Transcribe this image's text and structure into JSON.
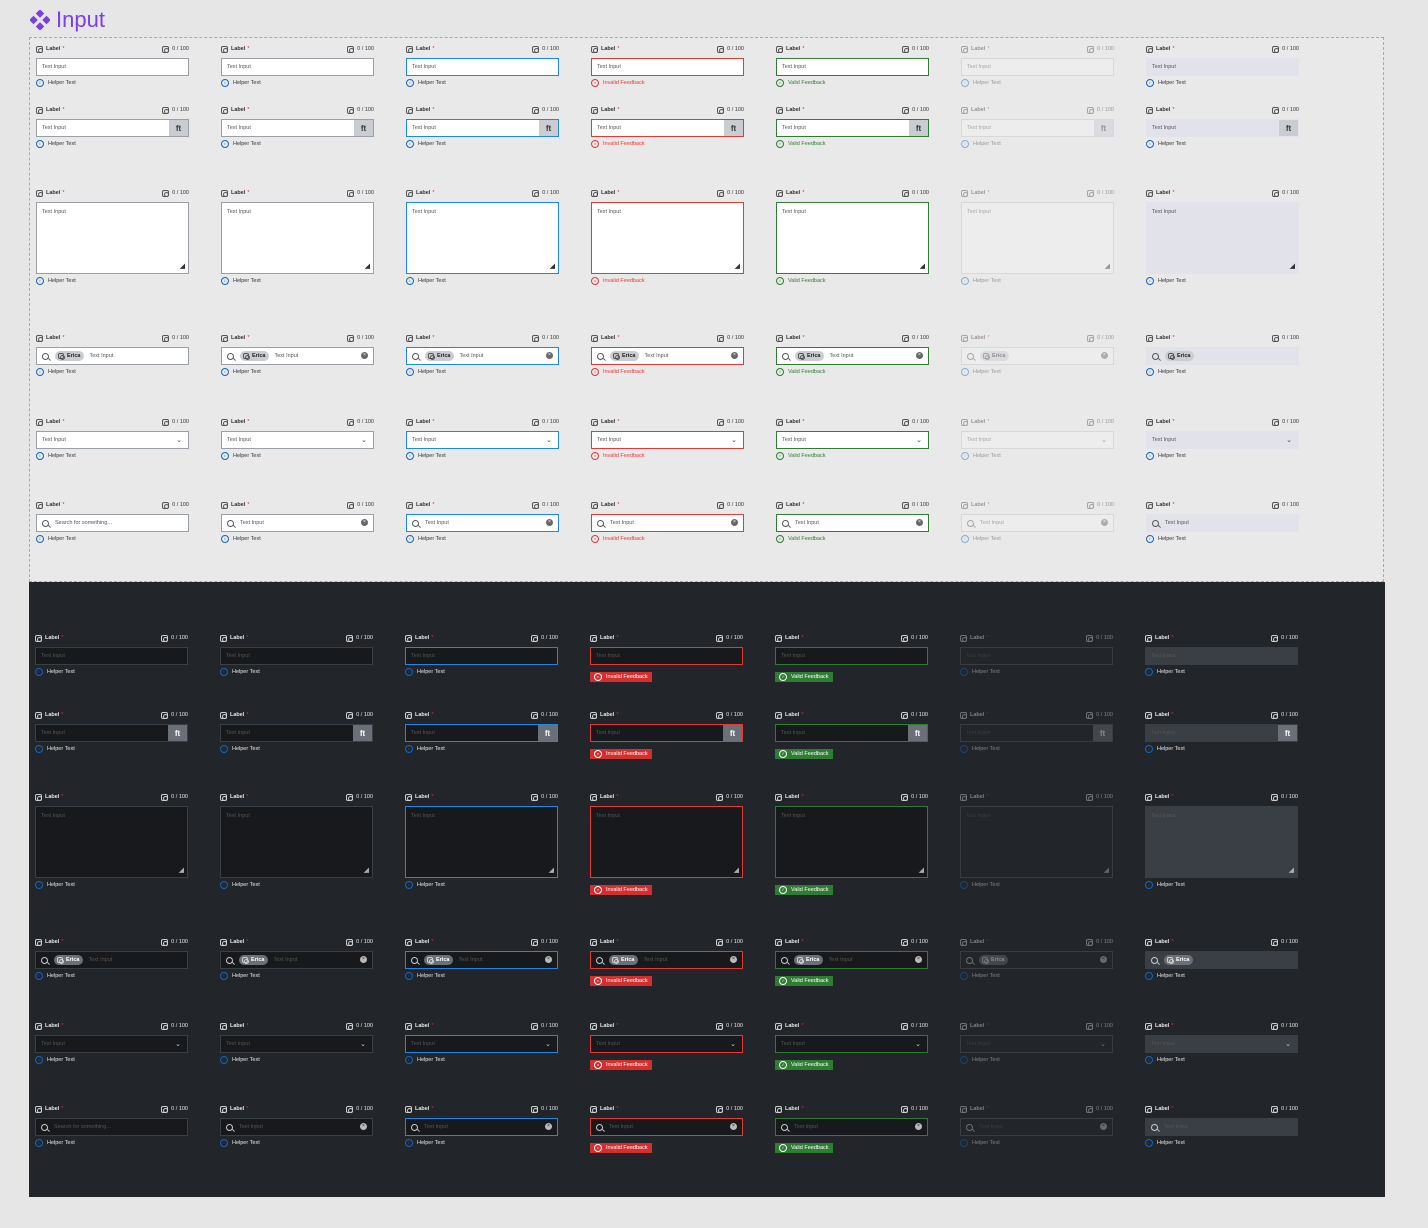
{
  "page": {
    "title": "Input",
    "accent": "#7b3fe4"
  },
  "colors": {
    "focus": "#1e88e5",
    "invalid": "#e53935",
    "valid": "#2e7d32",
    "dark_bg": "#22262b"
  },
  "labels": {
    "label": "Label",
    "required": "*",
    "counter": "0 / 100",
    "placeholder": "Text Input",
    "value": "Text Input",
    "search_placeholder": "Search for something...",
    "helper": "Helper Text",
    "invalid": "Invalid Feedback",
    "valid": "Valid Feedback",
    "addon": "ft",
    "chip": "Erica"
  },
  "states": [
    "default",
    "filled",
    "focus",
    "invalid",
    "valid",
    "disabled",
    "readonly"
  ],
  "variants": [
    "text",
    "addon",
    "textarea",
    "tags",
    "select",
    "search"
  ],
  "icons": [
    "component-icon",
    "info-icon",
    "error-icon",
    "check-circle-icon",
    "search-icon",
    "clear-icon",
    "chevron-down-icon",
    "resize-handle-icon"
  ]
}
